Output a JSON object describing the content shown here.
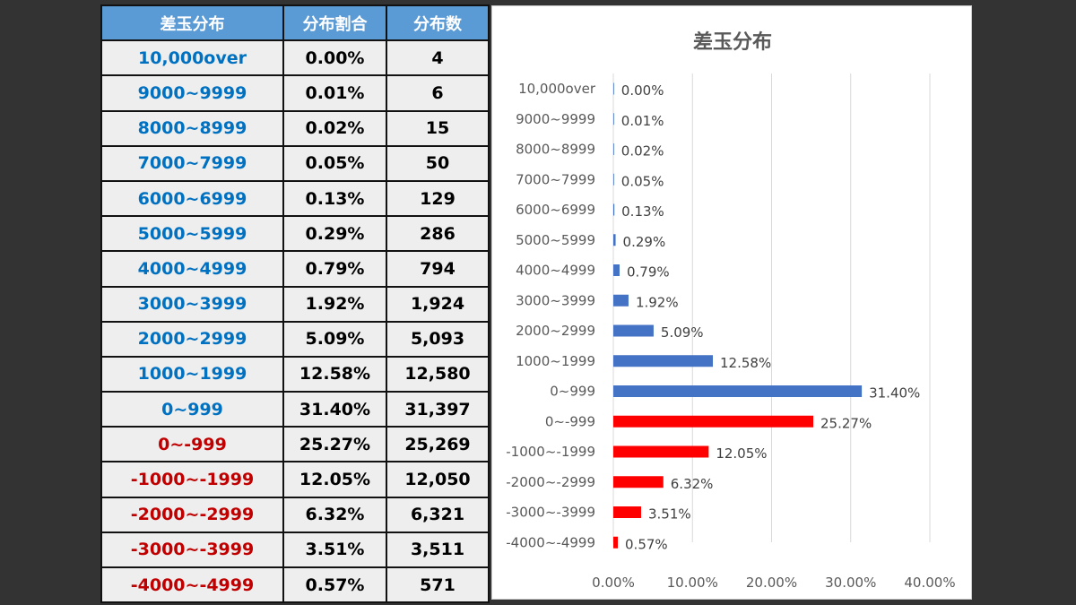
{
  "table": {
    "headers": [
      "差玉分布",
      "分布割合",
      "分布数"
    ],
    "rows": [
      {
        "range": "10,000over",
        "pct": "0.00%",
        "count": "4",
        "sign": "pos"
      },
      {
        "range": "9000~9999",
        "pct": "0.01%",
        "count": "6",
        "sign": "pos"
      },
      {
        "range": "8000~8999",
        "pct": "0.02%",
        "count": "15",
        "sign": "pos"
      },
      {
        "range": "7000~7999",
        "pct": "0.05%",
        "count": "50",
        "sign": "pos"
      },
      {
        "range": "6000~6999",
        "pct": "0.13%",
        "count": "129",
        "sign": "pos"
      },
      {
        "range": "5000~5999",
        "pct": "0.29%",
        "count": "286",
        "sign": "pos"
      },
      {
        "range": "4000~4999",
        "pct": "0.79%",
        "count": "794",
        "sign": "pos"
      },
      {
        "range": "3000~3999",
        "pct": "1.92%",
        "count": "1,924",
        "sign": "pos"
      },
      {
        "range": "2000~2999",
        "pct": "5.09%",
        "count": "5,093",
        "sign": "pos"
      },
      {
        "range": "1000~1999",
        "pct": "12.58%",
        "count": "12,580",
        "sign": "pos"
      },
      {
        "range": "0~999",
        "pct": "31.40%",
        "count": "31,397",
        "sign": "pos"
      },
      {
        "range": "0~-999",
        "pct": "25.27%",
        "count": "25,269",
        "sign": "neg"
      },
      {
        "range": "-1000~-1999",
        "pct": "12.05%",
        "count": "12,050",
        "sign": "neg"
      },
      {
        "range": "-2000~-2999",
        "pct": "6.32%",
        "count": "6,321",
        "sign": "neg"
      },
      {
        "range": "-3000~-3999",
        "pct": "3.51%",
        "count": "3,511",
        "sign": "neg"
      },
      {
        "range": "-4000~-4999",
        "pct": "0.57%",
        "count": "571",
        "sign": "neg"
      }
    ]
  },
  "chart_data": {
    "type": "bar",
    "orientation": "horizontal",
    "title": "差玉分布",
    "categories": [
      "10,000over",
      "9000~9999",
      "8000~8999",
      "7000~7999",
      "6000~6999",
      "5000~5999",
      "4000~4999",
      "3000~3999",
      "2000~2999",
      "1000~1999",
      "0~999",
      "0~-999",
      "-1000~-1999",
      "-2000~-2999",
      "-3000~-3999",
      "-4000~-4999"
    ],
    "values": [
      0.0,
      0.01,
      0.02,
      0.05,
      0.13,
      0.29,
      0.79,
      1.92,
      5.09,
      12.58,
      31.4,
      25.27,
      12.05,
      6.32,
      3.51,
      0.57
    ],
    "data_labels": [
      "0.00%",
      "0.01%",
      "0.02%",
      "0.05%",
      "0.13%",
      "0.29%",
      "0.79%",
      "1.92%",
      "5.09%",
      "12.58%",
      "31.40%",
      "25.27%",
      "12.05%",
      "6.32%",
      "3.51%",
      "0.57%"
    ],
    "xlim": [
      0,
      40
    ],
    "xticks": [
      "0.00%",
      "10.00%",
      "20.00%",
      "30.00%",
      "40.00%"
    ],
    "grid": true,
    "colors": {
      "positive": "#4472c4",
      "negative": "#ff0000"
    }
  }
}
